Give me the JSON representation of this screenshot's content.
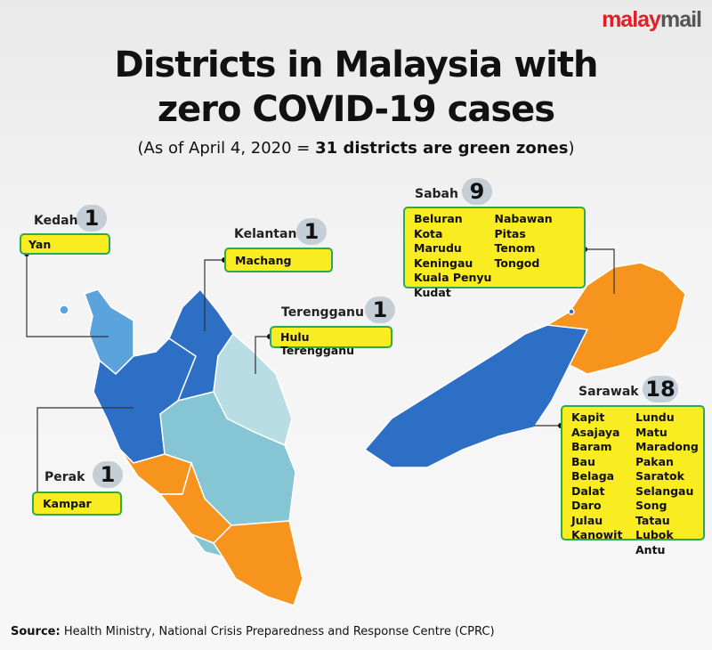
{
  "brand": {
    "logo_part1": "malay",
    "logo_part2": "mail"
  },
  "title_line1": "Districts in Malaysia with",
  "title_line2": "zero COVID-19 cases",
  "subtitle": {
    "prefix": "(As of April 4, 2020 = ",
    "bold": "31 districts are green zones",
    "suffix": ")"
  },
  "colors": {
    "box_fill": "#f9ec20",
    "box_border": "#2fa84f",
    "dark_blue": "#2e6fc6",
    "light_blue": "#5aa3dc",
    "teal": "#86c5d3",
    "pale": "#b9dde4",
    "orange": "#f7941d"
  },
  "states": [
    {
      "name": "Kedah",
      "count": "1",
      "districts": [
        "Yan"
      ]
    },
    {
      "name": "Kelantan",
      "count": "1",
      "districts": [
        "Machang"
      ]
    },
    {
      "name": "Terengganu",
      "count": "1",
      "districts": [
        "Hulu Terengganu"
      ]
    },
    {
      "name": "Perak",
      "count": "1",
      "districts": [
        "Kampar"
      ]
    },
    {
      "name": "Sabah",
      "count": "9",
      "districts": [
        "Beluran",
        "Kota Marudu",
        "Keningau",
        "Kuala Penyu",
        "Kudat",
        "Nabawan",
        "Pitas",
        "Tenom",
        "Tongod"
      ]
    },
    {
      "name": "Sarawak",
      "count": "18",
      "districts": [
        "Kapit",
        "Asajaya",
        "Baram",
        "Bau",
        "Belaga",
        "Dalat",
        "Daro",
        "Julau",
        "Kanowit",
        "Lundu",
        "Matu",
        "Maradong",
        "Pakan",
        "Saratok",
        "Selangau",
        "Song",
        "Tatau",
        "Lubok Antu"
      ]
    }
  ],
  "source": {
    "label": "Source:",
    "text": " Health Ministry, National Crisis Preparedness and Response Centre (CPRC)"
  }
}
